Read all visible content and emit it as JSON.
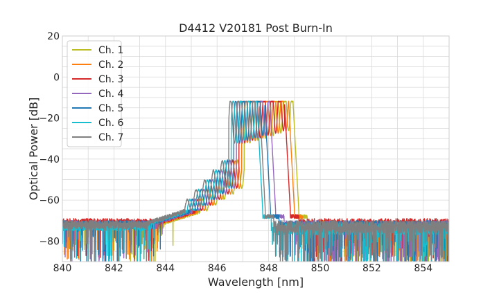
{
  "chart_data": {
    "type": "line",
    "title": "D4412 V20181 Post Burn-In",
    "xlabel": "Wavelength [nm]",
    "ylabel": "Optical Power [dB]",
    "xlim": [
      840,
      855
    ],
    "ylim": [
      -90,
      20
    ],
    "xticks": [
      "840",
      "842",
      "844",
      "846",
      "848",
      "850",
      "852",
      "854"
    ],
    "yticks": [
      "-80",
      "-60",
      "-40",
      "-20",
      "0",
      "20"
    ],
    "grid": true,
    "legend_position": "top-left",
    "series": [
      {
        "name": "Ch. 1",
        "color": "#bcbd22",
        "peak_nm": 848.95,
        "shift_nm": 0.35,
        "noise_floor_db": -72
      },
      {
        "name": "Ch. 2",
        "color": "#ff7f0e",
        "peak_nm": 848.78,
        "shift_nm": 0.25,
        "noise_floor_db": -72
      },
      {
        "name": "Ch. 3",
        "color": "#d62728",
        "peak_nm": 848.62,
        "shift_nm": 0.15,
        "noise_floor_db": -71
      },
      {
        "name": "Ch. 4",
        "color": "#9467bd",
        "peak_nm": 848.05,
        "shift_nm": 0.05,
        "noise_floor_db": -72
      },
      {
        "name": "Ch. 5",
        "color": "#1f77b4",
        "peak_nm": 847.85,
        "shift_nm": -0.05,
        "noise_floor_db": -72
      },
      {
        "name": "Ch. 6",
        "color": "#17becf",
        "peak_nm": 847.55,
        "shift_nm": -0.15,
        "noise_floor_db": -73
      },
      {
        "name": "Ch. 7",
        "color": "#7f7f7f",
        "peak_nm": 847.65,
        "shift_nm": -0.25,
        "noise_floor_db": -72
      }
    ]
  }
}
